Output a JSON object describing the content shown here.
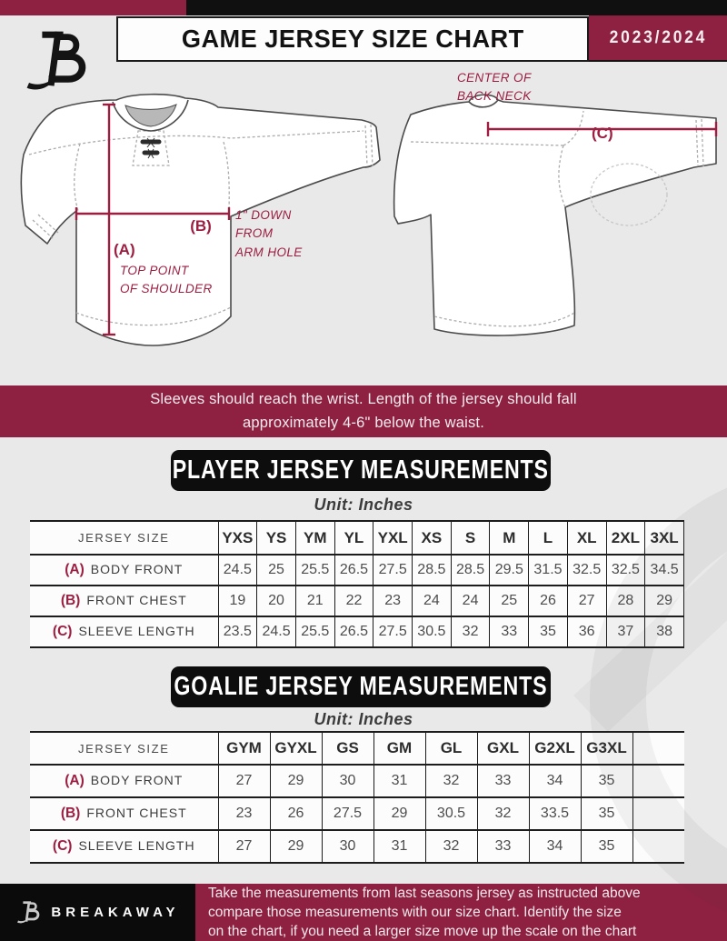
{
  "colors": {
    "maroon": "#8E2041",
    "ink": "#111111",
    "background": "#E9E9EA",
    "annotation": "#9C1E41",
    "table_line": "#1C1C1C"
  },
  "header": {
    "title": "GAME JERSEY SIZE CHART",
    "season": "2023/2024"
  },
  "diagram": {
    "front": {
      "a_label": "(A)",
      "a_caption_line1": "TOP POINT",
      "a_caption_line2": "OF SHOULDER",
      "b_label": "(B)",
      "b_caption_line1": "1\" DOWN",
      "b_caption_line2": "FROM",
      "b_caption_line3": "ARM HOLE"
    },
    "back": {
      "c_label": "(C)",
      "c_caption_line1": "CENTER OF",
      "c_caption_line2": "BACK NECK"
    }
  },
  "notice": {
    "line1": "Sleeves should reach the wrist. Length of the jersey should fall",
    "line2": "approximately 4-6\" below the waist."
  },
  "player_table": {
    "title": "PLAYER JERSEY MEASUREMENTS",
    "unit": "Unit: Inches",
    "corner_label": "JERSEY SIZE",
    "sizes": [
      "YXS",
      "YS",
      "YM",
      "YL",
      "YXL",
      "XS",
      "S",
      "M",
      "L",
      "XL",
      "2XL",
      "3XL"
    ],
    "rows": [
      {
        "key": "(A)",
        "label": "BODY FRONT",
        "values": [
          "24.5",
          "25",
          "25.5",
          "26.5",
          "27.5",
          "28.5",
          "28.5",
          "29.5",
          "31.5",
          "32.5",
          "32.5",
          "34.5"
        ]
      },
      {
        "key": "(B)",
        "label": "FRONT CHEST",
        "values": [
          "19",
          "20",
          "21",
          "22",
          "23",
          "24",
          "24",
          "25",
          "26",
          "27",
          "28",
          "29"
        ]
      },
      {
        "key": "(C)",
        "label": "SLEEVE LENGTH",
        "values": [
          "23.5",
          "24.5",
          "25.5",
          "26.5",
          "27.5",
          "30.5",
          "32",
          "33",
          "35",
          "36",
          "37",
          "38"
        ]
      }
    ]
  },
  "goalie_table": {
    "title": "GOALIE JERSEY MEASUREMENTS",
    "unit": "Unit: Inches",
    "corner_label": "JERSEY SIZE",
    "sizes": [
      "GYM",
      "GYXL",
      "GS",
      "GM",
      "GL",
      "GXL",
      "G2XL",
      "G3XL",
      ""
    ],
    "rows": [
      {
        "key": "(A)",
        "label": "BODY FRONT",
        "values": [
          "27",
          "29",
          "30",
          "31",
          "32",
          "33",
          "34",
          "35",
          ""
        ]
      },
      {
        "key": "(B)",
        "label": "FRONT CHEST",
        "values": [
          "23",
          "26",
          "27.5",
          "29",
          "30.5",
          "32",
          "33.5",
          "35",
          ""
        ]
      },
      {
        "key": "(C)",
        "label": "SLEEVE LENGTH",
        "values": [
          "27",
          "29",
          "30",
          "31",
          "32",
          "33",
          "34",
          "35",
          ""
        ]
      }
    ]
  },
  "footer": {
    "brand": "BREAKAWAY",
    "note_line1": "Take the measurements from last seasons jersey as instructed above",
    "note_line2": "compare those measurements  with our size chart. Identify the size",
    "note_line3": "on the chart, if you need a larger size move up the scale on the chart"
  }
}
